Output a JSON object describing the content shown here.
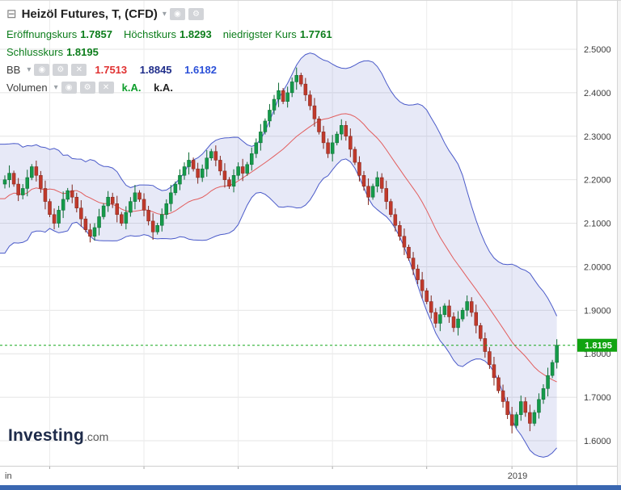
{
  "header": {
    "window_icon": "⊟",
    "title": "Heizöl Futures, T, (CFD)",
    "caret": "▾",
    "eye_icon": "◉",
    "gear_icon": "⚙",
    "close_icon": "✕"
  },
  "legend": {
    "row_ohlc": {
      "open_label": "Eröffnungskurs",
      "open_value": "1.7857",
      "high_label": "Höchstkurs",
      "high_value": "1.8293",
      "low_label": "niedrigster Kurs",
      "low_value": "1.7761"
    },
    "row_close": {
      "label": "Schlusskurs",
      "value": "1.8195"
    },
    "row_bb": {
      "label": "BB",
      "v1": "1.7513",
      "v2": "1.8845",
      "v3": "1.6182"
    },
    "row_vol": {
      "label": "Volumen",
      "v1": "k.A.",
      "v2": "k.A."
    }
  },
  "logo": {
    "name": "Investing",
    "tld": ".com"
  },
  "axis": {
    "x_ticks": [
      {
        "label": "in",
        "x": 6,
        "anchor": "start"
      },
      {
        "label": "2019",
        "x": 640,
        "anchor": "middle"
      }
    ],
    "last_price_label": "1.8195"
  },
  "colors": {
    "legend_green": "#0c7d1b",
    "bb_v1": "#e03131",
    "bb_v2": "#1f2d8a",
    "bb_v3": "#2b50d8",
    "vol_v1": "#0c9d2a",
    "vol_v2": "#222222",
    "up": "#159a4a",
    "up_border": "#0c6b33",
    "down": "#c0392b",
    "down_border": "#7f271d",
    "band_line": "#4a5ac9",
    "band_fill": "rgba(105,120,205,0.16)",
    "mid_line": "#e25d5d",
    "grid": "#e4e4e4",
    "month_grid": "#ececec",
    "last_price_line": "#17a81c",
    "price_tag": "#10a310",
    "axis_text": "#3d3d3d",
    "x_text": "#444444",
    "border": "#cfcfcf"
  },
  "chart_data": {
    "type": "candlestick",
    "title": "Heizöl Futures, T, (CFD)",
    "indicator": "Bollinger Bands (20, 2)",
    "ylim": [
      1.6,
      2.5
    ],
    "y_ticks": [
      2.5,
      2.4,
      2.3,
      2.2,
      2.1,
      2.0,
      1.9,
      1.8,
      1.7,
      1.6
    ],
    "last_price": 1.8195,
    "bb": {
      "period": 20,
      "stddev": 2,
      "middle": 1.7513,
      "upper": 1.8845,
      "lower": 1.6182
    },
    "first_open": 2.19,
    "pre_closes": [
      2.05,
      2.1,
      2.18,
      2.24,
      2.12,
      2.06,
      2.15,
      2.23,
      2.19,
      2.08,
      2.13,
      2.22,
      2.25,
      2.14,
      2.07,
      2.12,
      2.2,
      2.24,
      2.16
    ],
    "closes": [
      2.2,
      2.215,
      2.19,
      2.165,
      2.18,
      2.205,
      2.23,
      2.21,
      2.18,
      2.15,
      2.12,
      2.1,
      2.13,
      2.155,
      2.175,
      2.16,
      2.135,
      2.11,
      2.085,
      2.07,
      2.09,
      2.115,
      2.14,
      2.16,
      2.145,
      2.12,
      2.1,
      2.125,
      2.15,
      2.17,
      2.155,
      2.13,
      2.105,
      2.08,
      2.095,
      2.12,
      2.145,
      2.17,
      2.19,
      2.21,
      2.23,
      2.245,
      2.225,
      2.205,
      2.225,
      2.25,
      2.265,
      2.245,
      2.22,
      2.2,
      2.185,
      2.21,
      2.23,
      2.215,
      2.235,
      2.26,
      2.285,
      2.31,
      2.335,
      2.36,
      2.385,
      2.405,
      2.38,
      2.4,
      2.425,
      2.44,
      2.42,
      2.395,
      2.37,
      2.34,
      2.31,
      2.285,
      2.26,
      2.285,
      2.305,
      2.325,
      2.3,
      2.27,
      2.24,
      2.21,
      2.185,
      2.16,
      2.185,
      2.205,
      2.18,
      2.15,
      2.12,
      2.095,
      2.07,
      2.045,
      2.02,
      1.995,
      1.97,
      1.945,
      1.92,
      1.895,
      1.87,
      1.89,
      1.91,
      1.885,
      1.86,
      1.88,
      1.9,
      1.92,
      1.895,
      1.865,
      1.835,
      1.805,
      1.775,
      1.745,
      1.715,
      1.69,
      1.66,
      1.635,
      1.66,
      1.69,
      1.665,
      1.64,
      1.665,
      1.695,
      1.72,
      1.75,
      1.78,
      1.8195
    ],
    "wick_pattern": [
      0.01,
      0.018,
      0.006,
      0.014
    ],
    "month_bars": [
      10,
      31,
      52,
      73,
      94,
      113
    ]
  }
}
